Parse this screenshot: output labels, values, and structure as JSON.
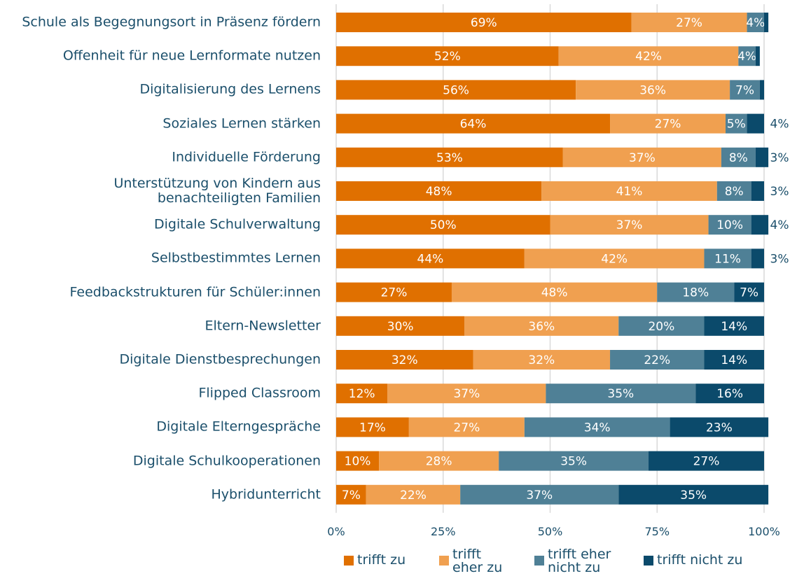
{
  "chart_data": {
    "type": "stacked_barh",
    "categories": [
      "Schule als Begegnungsort in Präsenz fördern",
      "Offenheit für neue Lernformate nutzen",
      "Digitalisierung des Lernens",
      "Soziales Lernen stärken",
      "Individuelle Förderung",
      "Unterstützung von Kindern aus\nbenachteiligten Familien",
      "Digitale Schulverwaltung",
      "Selbstbestimmtes Lernen",
      "Feedbackstrukturen für Schüler:innen",
      "Eltern-Newsletter",
      "Digitale Dienstbesprechungen",
      "Flipped Classroom",
      "Digitale Elterngespräche",
      "Digitale Schulkooperationen",
      "Hybridunterricht"
    ],
    "series": [
      {
        "name": "trifft zu",
        "color": "#e07000",
        "values": [
          69,
          52,
          56,
          64,
          53,
          48,
          50,
          44,
          27,
          30,
          32,
          12,
          17,
          10,
          7
        ],
        "value_labels": [
          "69%",
          "52%",
          "56%",
          "64%",
          "53%",
          "48%",
          "50%",
          "44%",
          "27%",
          "30%",
          "32%",
          "12%",
          "17%",
          "10%",
          "7%"
        ]
      },
      {
        "name": "trifft\neher zu",
        "color": "#f0a050",
        "values": [
          27,
          42,
          36,
          27,
          37,
          41,
          37,
          42,
          48,
          36,
          32,
          37,
          27,
          28,
          22
        ],
        "value_labels": [
          "27%",
          "42%",
          "36%",
          "27%",
          "37%",
          "41%",
          "37%",
          "42%",
          "48%",
          "36%",
          "32%",
          "37%",
          "27%",
          "28%",
          "22%"
        ]
      },
      {
        "name": "trifft eher\nnicht zu",
        "color": "#4f8096",
        "values": [
          4,
          4,
          7,
          5,
          8,
          8,
          10,
          11,
          18,
          20,
          22,
          35,
          34,
          35,
          37
        ],
        "value_labels": [
          "4%",
          "4%",
          "7%",
          "5%",
          "8%",
          "8%",
          "10%",
          "11%",
          "18%",
          "20%",
          "22%",
          "35%",
          "34%",
          "35%",
          "37%"
        ]
      },
      {
        "name": "trifft nicht zu",
        "color": "#0b4a6b",
        "values": [
          1,
          1,
          1,
          4,
          3,
          3,
          4,
          3,
          7,
          14,
          14,
          16,
          23,
          27,
          35
        ],
        "value_labels": [
          null,
          null,
          null,
          "4%",
          "3%",
          "3%",
          "4%",
          "3%",
          "7%",
          "14%",
          "14%",
          "16%",
          "23%",
          "27%",
          "35%"
        ]
      }
    ],
    "xlim": [
      0,
      100
    ],
    "xticks": [
      {
        "value": 0,
        "label": "0%"
      },
      {
        "value": 25,
        "label": "25%"
      },
      {
        "value": 50,
        "label": "50%"
      },
      {
        "value": 75,
        "label": "75%"
      },
      {
        "value": 100,
        "label": "100%"
      }
    ],
    "grid": true
  }
}
